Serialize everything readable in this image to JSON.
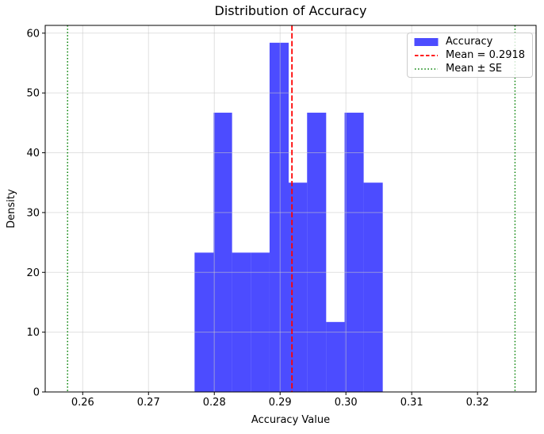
{
  "chart_data": {
    "type": "bar",
    "subtype": "histogram",
    "title": "Distribution of Accuracy",
    "xlabel": "Accuracy Value",
    "ylabel": "Density",
    "bins": {
      "edges": [
        0.277,
        0.2799,
        0.2827,
        0.2856,
        0.2884,
        0.2913,
        0.2941,
        0.297,
        0.2998,
        0.3027,
        0.3056
      ],
      "densities": [
        23.3,
        46.7,
        23.3,
        23.3,
        58.4,
        35.0,
        46.7,
        11.7,
        46.7,
        35.0
      ]
    },
    "annotations": {
      "mean_line_x": 0.2918,
      "se_lines_x": [
        0.2577,
        0.3257
      ]
    },
    "xlim": [
      0.2543,
      0.3289
    ],
    "ylim": [
      0,
      61.3
    ],
    "xticks": {
      "values": [
        0.26,
        0.27,
        0.28,
        0.29,
        0.3,
        0.31,
        0.32
      ],
      "labels": [
        "0.26",
        "0.27",
        "0.28",
        "0.29",
        "0.30",
        "0.31",
        "0.32"
      ]
    },
    "yticks": {
      "values": [
        0,
        10,
        20,
        30,
        40,
        50,
        60
      ],
      "labels": [
        "0",
        "10",
        "20",
        "30",
        "40",
        "50",
        "60"
      ]
    },
    "grid": true,
    "legend": {
      "position": "upper-right",
      "items": [
        {
          "label": "Accuracy",
          "swatch": "patch",
          "color": "rgba(0,0,255,0.7)"
        },
        {
          "label": "Mean = 0.2918",
          "swatch": "dashed-line",
          "color": "#ff0000"
        },
        {
          "label": "Mean ± SE",
          "swatch": "dotted-line",
          "color": "#008000"
        }
      ]
    },
    "colors": {
      "bar_fill": "rgba(0,0,255,0.7)",
      "mean_line": "#ff0000",
      "se_line": "#008000",
      "grid_line": "rgba(200,200,200,0.55)",
      "spine": "#000000",
      "background": "#ffffff"
    }
  }
}
